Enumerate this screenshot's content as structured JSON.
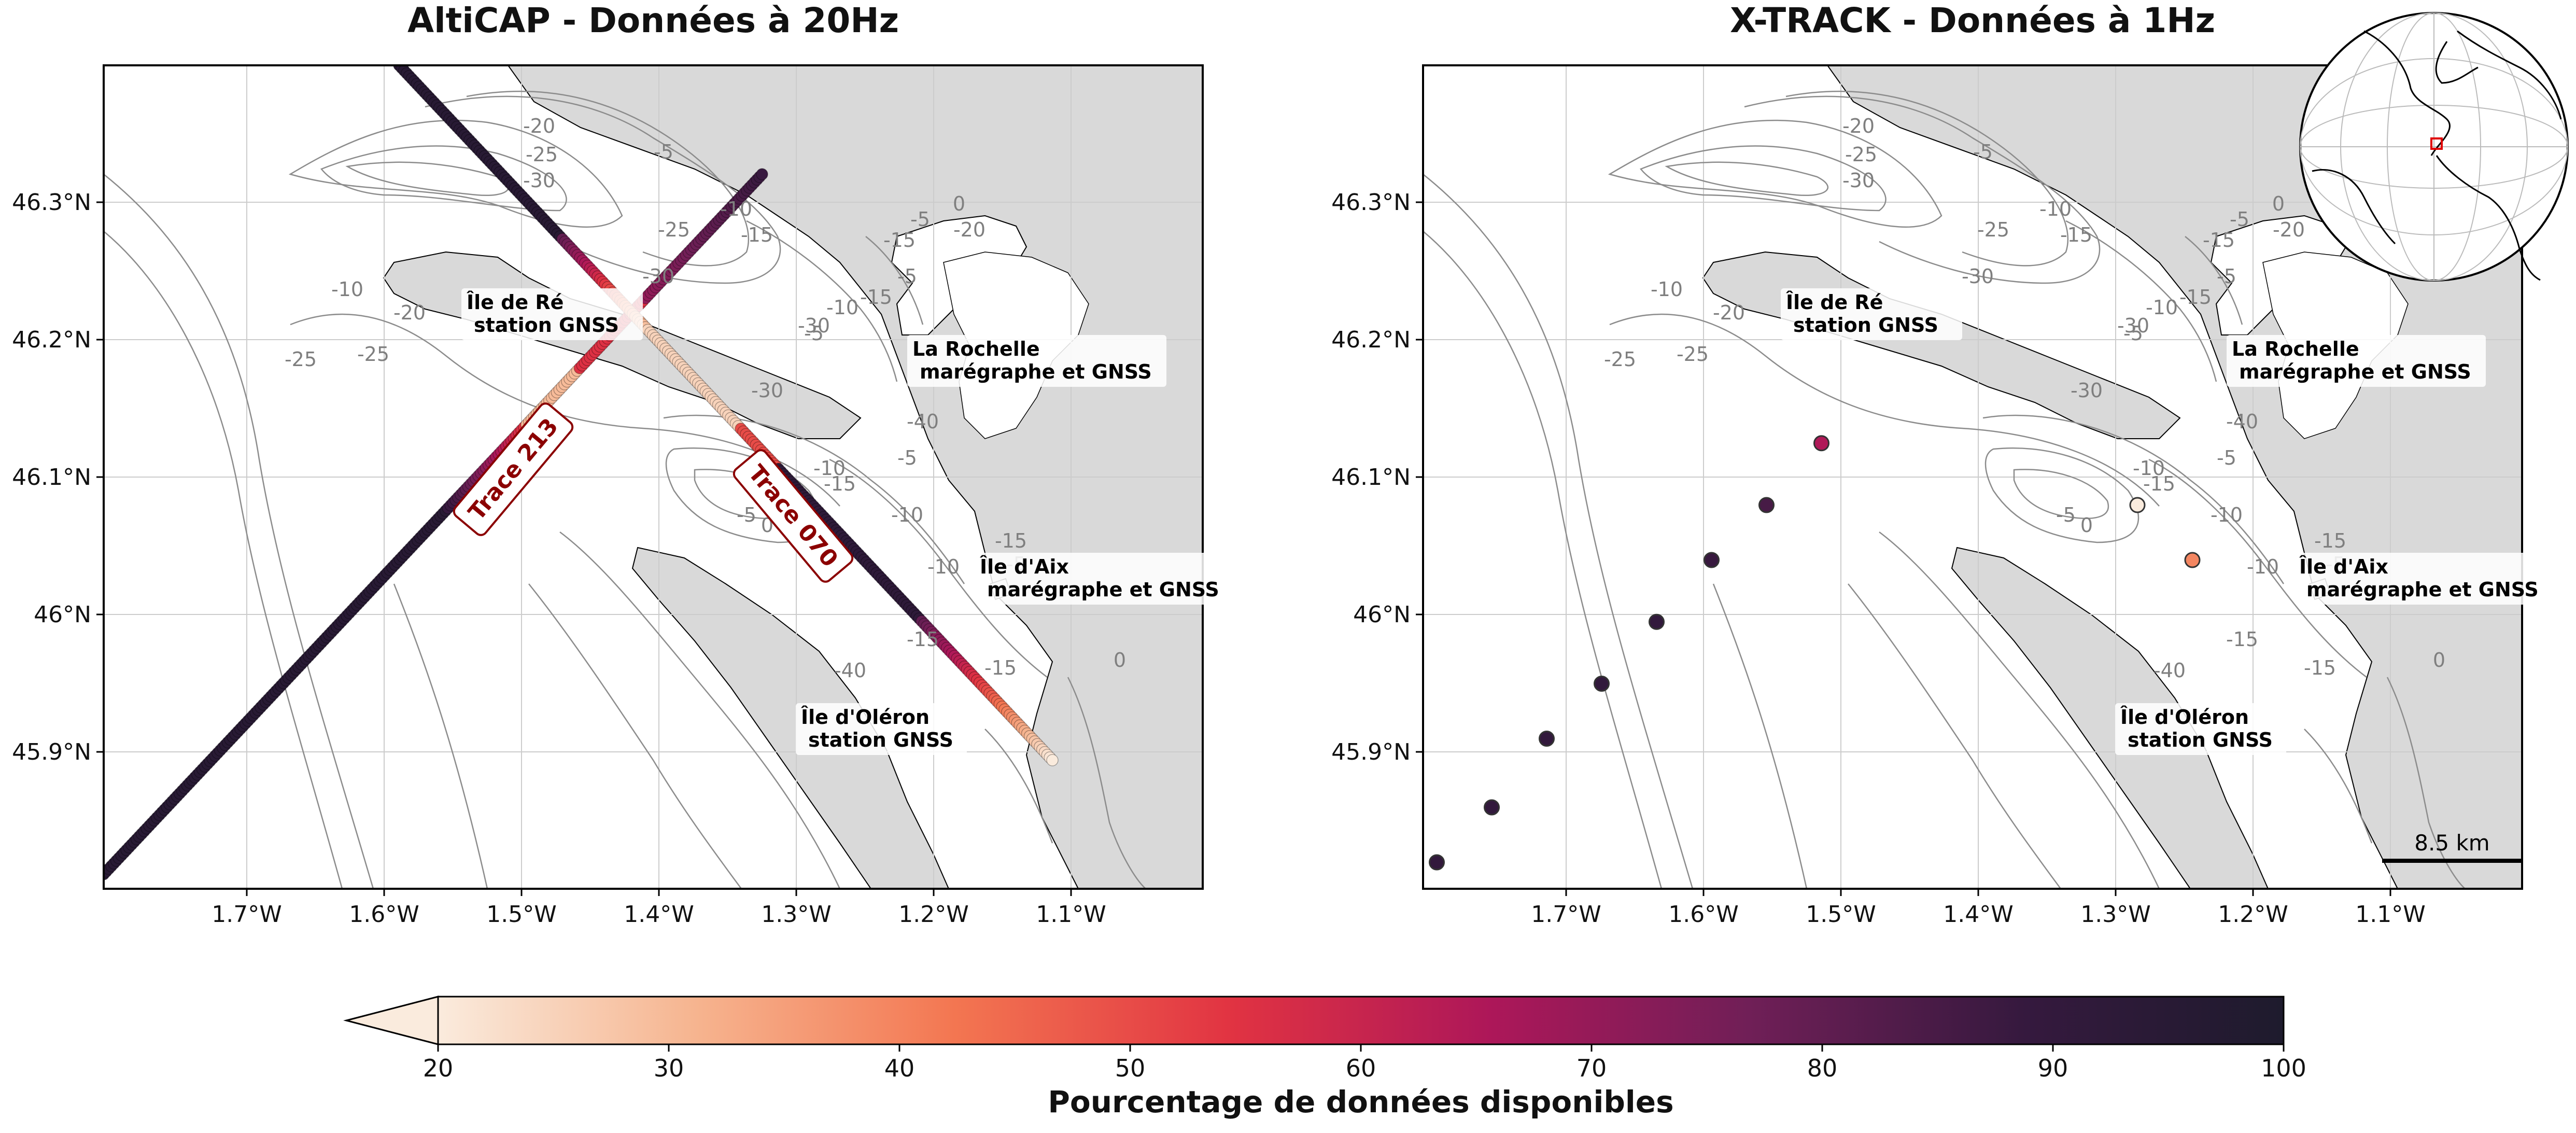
{
  "panels": [
    {
      "id": "alticap",
      "title": "AltiCAP  - Données à 20Hz"
    },
    {
      "id": "xtrack",
      "title": "X-TRACK - Données à 1Hz"
    }
  ],
  "axes": {
    "lat_ticks": [
      "46.3°N",
      "46.2°N",
      "46.1°N",
      "46°N",
      "45.9°N"
    ],
    "lon_ticks": [
      "1.7°W",
      "1.6°W",
      "1.5°W",
      "1.4°W",
      "1.3°W",
      "1.2°W",
      "1.1°W"
    ]
  },
  "places": [
    {
      "line1": "Île de Ré",
      "line2": "station GNSS"
    },
    {
      "line1": "La Rochelle",
      "line2": "marégraphe et GNSS"
    },
    {
      "line1": "Île d'Aix",
      "line2": "marégraphe et GNSS"
    },
    {
      "line1": "Île d'Oléron",
      "line2": "station GNSS"
    }
  ],
  "traces": [
    {
      "label": "Trace 213"
    },
    {
      "label": "Trace 070"
    }
  ],
  "contour_labels": [
    "-20",
    "-25",
    "-30",
    "-5",
    "-10",
    "-15",
    "-25",
    "-30",
    "0",
    "-15",
    "-5",
    "-20",
    "-5",
    "-15",
    "-10",
    "-5",
    "-30",
    "-25",
    "-20",
    "-10",
    "-25",
    "-40",
    "-30",
    "-5",
    "-10",
    "-15",
    "-5",
    "0",
    "-10",
    "-15",
    "-10",
    "-5",
    "-15",
    "-40",
    "-15",
    "0"
  ],
  "scalebar": {
    "label": "8.5 km"
  },
  "colorbar": {
    "ticks": [
      "20",
      "30",
      "40",
      "50",
      "60",
      "70",
      "80",
      "90",
      "100"
    ],
    "label": "Pourcentage de données disponibles",
    "colors": [
      "#faebdd",
      "#f6b48f",
      "#f37651",
      "#e13342",
      "#ad1759",
      "#701f57",
      "#35193e",
      "#1e1b2d"
    ]
  },
  "xtrack_points": [
    {
      "lon": -1.79,
      "lat": 45.82,
      "pct": 90
    },
    {
      "lon": -1.75,
      "lat": 45.86,
      "pct": 90
    },
    {
      "lon": -1.71,
      "lat": 45.91,
      "pct": 90
    },
    {
      "lon": -1.67,
      "lat": 45.95,
      "pct": 90
    },
    {
      "lon": -1.63,
      "lat": 45.995,
      "pct": 90
    },
    {
      "lon": -1.59,
      "lat": 46.04,
      "pct": 88
    },
    {
      "lon": -1.55,
      "lat": 46.08,
      "pct": 85
    },
    {
      "lon": -1.51,
      "lat": 46.125,
      "pct": 65
    },
    {
      "lon": -1.28,
      "lat": 46.08,
      "pct": 15
    },
    {
      "lon": -1.24,
      "lat": 46.04,
      "pct": 40
    }
  ]
}
